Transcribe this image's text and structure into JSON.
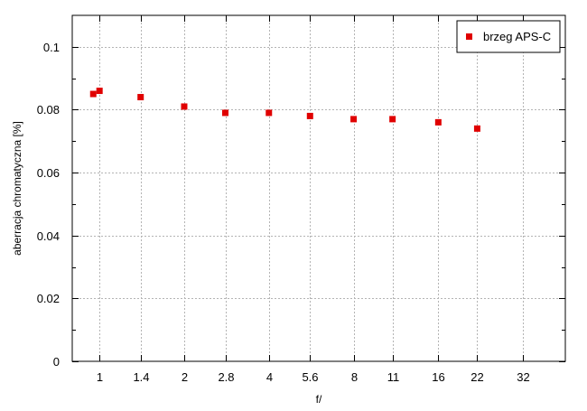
{
  "chart_data": {
    "type": "scatter",
    "x_axis": {
      "label": "f/",
      "ticks": [
        "1",
        "1.4",
        "2",
        "2.8",
        "4",
        "5.6",
        "8",
        "11",
        "16",
        "22",
        "32"
      ],
      "scale": "log2",
      "range": [
        0.8,
        45.25
      ]
    },
    "y_axis": {
      "label": "aberracja chromatyczna [%]",
      "ticks": [
        "0",
        "0.02",
        "0.04",
        "0.06",
        "0.08",
        "0.1"
      ],
      "range": [
        0,
        0.11
      ]
    },
    "grid": true,
    "legend_position": "top-right",
    "series": [
      {
        "name": "brzeg APS-C",
        "color": "#e00000",
        "marker": "square",
        "points": [
          {
            "x": 0.95,
            "y": 0.085
          },
          {
            "x": 1.0,
            "y": 0.086
          },
          {
            "x": 1.4,
            "y": 0.084
          },
          {
            "x": 2.0,
            "y": 0.081
          },
          {
            "x": 2.8,
            "y": 0.079
          },
          {
            "x": 4.0,
            "y": 0.079
          },
          {
            "x": 5.6,
            "y": 0.078
          },
          {
            "x": 8.0,
            "y": 0.077
          },
          {
            "x": 11.0,
            "y": 0.077
          },
          {
            "x": 16.0,
            "y": 0.076
          },
          {
            "x": 22.0,
            "y": 0.074
          }
        ]
      }
    ]
  }
}
